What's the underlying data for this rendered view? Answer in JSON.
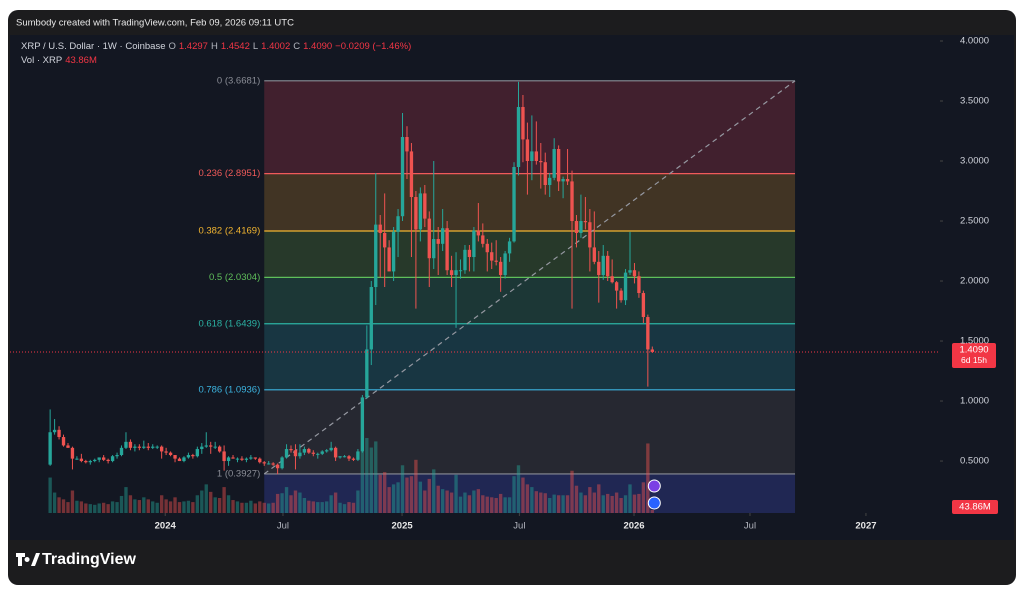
{
  "header": {
    "text": "Sumbody created with TradingView.com, Feb 09, 2026 09:11 UTC"
  },
  "brand": "TradingView",
  "chart_data": {
    "type": "candlestick",
    "legend": {
      "symbol": "XRP / U.S. Dollar · 1W · Coinbase",
      "o": "O",
      "o_val": "1.4297",
      "h": "H",
      "h_val": "1.4542",
      "l": "L",
      "l_val": "1.4002",
      "c": "C",
      "c_val": "1.4090",
      "change": "−0.0209 (−1.46%)",
      "vol": "Vol · XRP",
      "vol_val": "43.86M"
    },
    "up_color": "#26a69a",
    "down_color": "#ef5350",
    "candles": [
      [
        0.47,
        0.93,
        0.46,
        0.74
      ],
      [
        0.74,
        0.85,
        0.72,
        0.76
      ],
      [
        0.76,
        0.79,
        0.68,
        0.7
      ],
      [
        0.7,
        0.72,
        0.62,
        0.63
      ],
      [
        0.63,
        0.65,
        0.61,
        0.61
      ],
      [
        0.61,
        0.62,
        0.43,
        0.52
      ],
      [
        0.52,
        0.54,
        0.51,
        0.52
      ],
      [
        0.52,
        0.56,
        0.49,
        0.5
      ],
      [
        0.5,
        0.51,
        0.48,
        0.49
      ],
      [
        0.49,
        0.51,
        0.47,
        0.5
      ],
      [
        0.5,
        0.52,
        0.49,
        0.51
      ],
      [
        0.51,
        0.53,
        0.49,
        0.53
      ],
      [
        0.53,
        0.55,
        0.5,
        0.51
      ],
      [
        0.51,
        0.52,
        0.48,
        0.5
      ],
      [
        0.5,
        0.55,
        0.49,
        0.54
      ],
      [
        0.54,
        0.57,
        0.52,
        0.55
      ],
      [
        0.55,
        0.63,
        0.54,
        0.61
      ],
      [
        0.61,
        0.74,
        0.6,
        0.66
      ],
      [
        0.66,
        0.68,
        0.59,
        0.61
      ],
      [
        0.61,
        0.64,
        0.58,
        0.62
      ],
      [
        0.62,
        0.64,
        0.59,
        0.61
      ],
      [
        0.61,
        0.67,
        0.6,
        0.62
      ],
      [
        0.62,
        0.65,
        0.59,
        0.61
      ],
      [
        0.61,
        0.64,
        0.6,
        0.62
      ],
      [
        0.62,
        0.63,
        0.6,
        0.62
      ],
      [
        0.62,
        0.63,
        0.52,
        0.58
      ],
      [
        0.58,
        0.61,
        0.55,
        0.57
      ],
      [
        0.57,
        0.58,
        0.54,
        0.55
      ],
      [
        0.55,
        0.55,
        0.49,
        0.52
      ],
      [
        0.52,
        0.53,
        0.5,
        0.5
      ],
      [
        0.5,
        0.54,
        0.49,
        0.53
      ],
      [
        0.53,
        0.57,
        0.52,
        0.55
      ],
      [
        0.55,
        0.56,
        0.52,
        0.54
      ],
      [
        0.54,
        0.62,
        0.53,
        0.6
      ],
      [
        0.6,
        0.65,
        0.56,
        0.62
      ],
      [
        0.62,
        0.74,
        0.61,
        0.63
      ],
      [
        0.63,
        0.66,
        0.56,
        0.62
      ],
      [
        0.62,
        0.66,
        0.6,
        0.62
      ],
      [
        0.62,
        0.63,
        0.57,
        0.58
      ],
      [
        0.58,
        0.63,
        0.42,
        0.5
      ],
      [
        0.5,
        0.54,
        0.46,
        0.53
      ],
      [
        0.53,
        0.55,
        0.52,
        0.52
      ],
      [
        0.52,
        0.53,
        0.49,
        0.52
      ],
      [
        0.52,
        0.54,
        0.5,
        0.51
      ],
      [
        0.51,
        0.53,
        0.49,
        0.52
      ],
      [
        0.52,
        0.55,
        0.51,
        0.53
      ],
      [
        0.53,
        0.53,
        0.51,
        0.52
      ],
      [
        0.52,
        0.53,
        0.48,
        0.49
      ],
      [
        0.49,
        0.5,
        0.46,
        0.48
      ],
      [
        0.48,
        0.5,
        0.47,
        0.48
      ],
      [
        0.48,
        0.49,
        0.46,
        0.47
      ],
      [
        0.47,
        0.48,
        0.39,
        0.44
      ],
      [
        0.44,
        0.54,
        0.43,
        0.53
      ],
      [
        0.53,
        0.64,
        0.52,
        0.6
      ],
      [
        0.6,
        0.63,
        0.57,
        0.59
      ],
      [
        0.59,
        0.64,
        0.43,
        0.54
      ],
      [
        0.54,
        0.64,
        0.52,
        0.57
      ],
      [
        0.57,
        0.62,
        0.55,
        0.6
      ],
      [
        0.6,
        0.61,
        0.56,
        0.57
      ],
      [
        0.57,
        0.59,
        0.54,
        0.56
      ],
      [
        0.56,
        0.57,
        0.52,
        0.56
      ],
      [
        0.56,
        0.59,
        0.55,
        0.58
      ],
      [
        0.58,
        0.6,
        0.57,
        0.59
      ],
      [
        0.59,
        0.66,
        0.58,
        0.61
      ],
      [
        0.61,
        0.62,
        0.5,
        0.53
      ],
      [
        0.53,
        0.54,
        0.52,
        0.54
      ],
      [
        0.54,
        0.55,
        0.53,
        0.54
      ],
      [
        0.54,
        0.55,
        0.5,
        0.52
      ],
      [
        0.52,
        0.53,
        0.5,
        0.51
      ],
      [
        0.51,
        0.6,
        0.5,
        0.58
      ],
      [
        0.58,
        1.05,
        0.57,
        1.03
      ],
      [
        1.03,
        1.63,
        1.02,
        1.43
      ],
      [
        1.43,
        2.0,
        1.3,
        1.95
      ],
      [
        1.95,
        2.9,
        1.8,
        2.47
      ],
      [
        2.47,
        2.55,
        2.03,
        2.4
      ],
      [
        2.4,
        2.73,
        1.95,
        2.28
      ],
      [
        2.28,
        2.34,
        2.1,
        2.08
      ],
      [
        2.08,
        2.45,
        2.0,
        2.41
      ],
      [
        2.41,
        2.6,
        2.2,
        2.54
      ],
      [
        2.54,
        3.4,
        2.5,
        3.2
      ],
      [
        3.2,
        3.29,
        2.85,
        3.08
      ],
      [
        3.08,
        3.15,
        2.2,
        2.7
      ],
      [
        2.7,
        2.75,
        1.77,
        2.43
      ],
      [
        2.43,
        2.78,
        2.33,
        2.73
      ],
      [
        2.73,
        2.8,
        2.45,
        2.52
      ],
      [
        2.52,
        2.58,
        1.95,
        2.19
      ],
      [
        2.19,
        3.0,
        2.1,
        2.35
      ],
      [
        2.35,
        2.45,
        2.05,
        2.31
      ],
      [
        2.31,
        2.6,
        2.25,
        2.44
      ],
      [
        2.44,
        2.5,
        2.05,
        2.09
      ],
      [
        2.09,
        2.21,
        1.95,
        2.05
      ],
      [
        2.05,
        2.24,
        1.61,
        2.09
      ],
      [
        2.09,
        2.18,
        2.02,
        2.09
      ],
      [
        2.09,
        2.3,
        2.06,
        2.26
      ],
      [
        2.26,
        2.3,
        2.08,
        2.2
      ],
      [
        2.2,
        2.45,
        2.08,
        2.42
      ],
      [
        2.42,
        2.65,
        2.33,
        2.38
      ],
      [
        2.38,
        2.48,
        2.28,
        2.31
      ],
      [
        2.31,
        2.35,
        2.08,
        2.24
      ],
      [
        2.24,
        2.32,
        2.1,
        2.17
      ],
      [
        2.17,
        2.34,
        2.13,
        2.16
      ],
      [
        2.16,
        2.2,
        1.91,
        2.05
      ],
      [
        2.05,
        2.25,
        2.02,
        2.23
      ],
      [
        2.23,
        2.36,
        2.16,
        2.33
      ],
      [
        2.33,
        2.99,
        2.32,
        2.95
      ],
      [
        2.95,
        3.66,
        2.88,
        3.45
      ],
      [
        3.45,
        3.55,
        2.99,
        3.18
      ],
      [
        3.18,
        3.32,
        2.72,
        3.0
      ],
      [
        3.0,
        3.38,
        2.84,
        3.08
      ],
      [
        3.08,
        3.33,
        2.97,
        3.0
      ],
      [
        3.0,
        3.15,
        2.77,
        2.99
      ],
      [
        2.99,
        3.07,
        2.72,
        2.8
      ],
      [
        2.8,
        2.9,
        2.7,
        2.86
      ],
      [
        2.86,
        3.19,
        2.84,
        3.1
      ],
      [
        3.1,
        3.13,
        2.75,
        2.83
      ],
      [
        2.83,
        2.87,
        2.69,
        2.85
      ],
      [
        2.85,
        3.1,
        2.8,
        2.83
      ],
      [
        2.83,
        2.92,
        1.77,
        2.5
      ],
      [
        2.5,
        2.55,
        2.28,
        2.4
      ],
      [
        2.4,
        2.72,
        2.36,
        2.5
      ],
      [
        2.5,
        2.7,
        2.43,
        2.49
      ],
      [
        2.49,
        2.6,
        2.08,
        2.28
      ],
      [
        2.28,
        2.58,
        2.14,
        2.16
      ],
      [
        2.16,
        2.25,
        1.82,
        2.05
      ],
      [
        2.05,
        2.3,
        2.01,
        2.21
      ],
      [
        2.21,
        2.25,
        2.0,
        2.04
      ],
      [
        2.04,
        2.18,
        1.98,
        1.99
      ],
      [
        1.99,
        2.0,
        1.77,
        1.92
      ],
      [
        1.92,
        1.94,
        1.82,
        1.84
      ],
      [
        1.84,
        2.1,
        1.8,
        2.07
      ],
      [
        2.07,
        2.41,
        2.05,
        2.09
      ],
      [
        2.09,
        2.15,
        1.98,
        2.04
      ],
      [
        2.04,
        2.08,
        1.86,
        1.9
      ],
      [
        1.9,
        1.92,
        1.65,
        1.7
      ],
      [
        1.7,
        1.72,
        1.12,
        1.43
      ],
      [
        1.4297,
        1.4542,
        1.4002,
        1.409
      ]
    ],
    "volume": [
      520,
      300,
      230,
      200,
      160,
      330,
      180,
      170,
      140,
      130,
      120,
      140,
      150,
      130,
      170,
      160,
      250,
      380,
      260,
      200,
      190,
      230,
      200,
      170,
      150,
      260,
      200,
      170,
      230,
      160,
      170,
      180,
      160,
      260,
      330,
      420,
      310,
      230,
      220,
      380,
      260,
      190,
      170,
      150,
      150,
      180,
      140,
      170,
      150,
      140,
      150,
      280,
      290,
      380,
      260,
      330,
      300,
      220,
      180,
      170,
      160,
      160,
      170,
      260,
      300,
      150,
      130,
      160,
      150,
      330,
      900,
      1100,
      960,
      1050,
      560,
      600,
      380,
      420,
      450,
      700,
      520,
      540,
      780,
      460,
      330,
      500,
      640,
      400,
      350,
      330,
      300,
      560,
      240,
      300,
      260,
      330,
      350,
      260,
      240,
      230,
      220,
      280,
      230,
      230,
      540,
      700,
      520,
      420,
      380,
      320,
      300,
      290,
      220,
      270,
      260,
      260,
      260,
      620,
      400,
      300,
      260,
      380,
      300,
      420,
      260,
      280,
      250,
      300,
      220,
      260,
      420,
      270,
      280,
      450,
      1020,
      43.86
    ],
    "volume_last_label": "43.86M",
    "last_price": {
      "label": "1.4090",
      "countdown": "6d 15h"
    },
    "ylim": [
      0.067,
      4.05
    ],
    "yticks": [
      {
        "value": 0.5,
        "label": "0.5000"
      },
      {
        "value": 1,
        "label": "1.0000"
      },
      {
        "value": 1.5,
        "label": "1.5000"
      },
      {
        "value": 2,
        "label": "2.0000"
      },
      {
        "value": 2.5,
        "label": "2.5000"
      },
      {
        "value": 3,
        "label": "3.0000"
      },
      {
        "value": 3.5,
        "label": "3.5000"
      },
      {
        "value": 4,
        "label": "4.0000"
      }
    ],
    "xlim": [
      -9,
      199.5
    ],
    "xticks": [
      {
        "value": 25.8,
        "label": "2024"
      },
      {
        "value": 52.2,
        "label": "Jul"
      },
      {
        "value": 78.9,
        "label": "2025"
      },
      {
        "value": 105.2,
        "label": "Jul"
      },
      {
        "value": 130.9,
        "label": "2026"
      },
      {
        "value": 156.9,
        "label": "Jul"
      },
      {
        "value": 182.9,
        "label": "2027"
      }
    ],
    "fib": {
      "x": [
        48,
        167
      ],
      "levels": [
        {
          "label": "0 (3.6681)",
          "value": 3.6681,
          "color": "#8a8d96",
          "fill": "#4a2230"
        },
        {
          "label": "0.236 (2.8951)",
          "value": 2.8951,
          "color": "#f05a5a",
          "fill": "#4a3a24"
        },
        {
          "label": "0.382 (2.4169)",
          "value": 2.4169,
          "color": "#f2b530",
          "fill": "#2b3f2c"
        },
        {
          "label": "0.5 (2.0304)",
          "value": 2.0304,
          "color": "#5fbf5a",
          "fill": "#1e3d3a"
        },
        {
          "label": "0.618 (1.6439)",
          "value": 1.6439,
          "color": "#2bb3a5",
          "fill": "#1a3c48"
        },
        {
          "label": "0.786 (1.0936)",
          "value": 1.0936,
          "color": "#3cb4e0",
          "fill": "#2a2c34"
        },
        {
          "label": "1 (0.3927)",
          "value": 0.3927,
          "color": "#8a8d96",
          "fill": "#232a5c"
        }
      ]
    }
  }
}
